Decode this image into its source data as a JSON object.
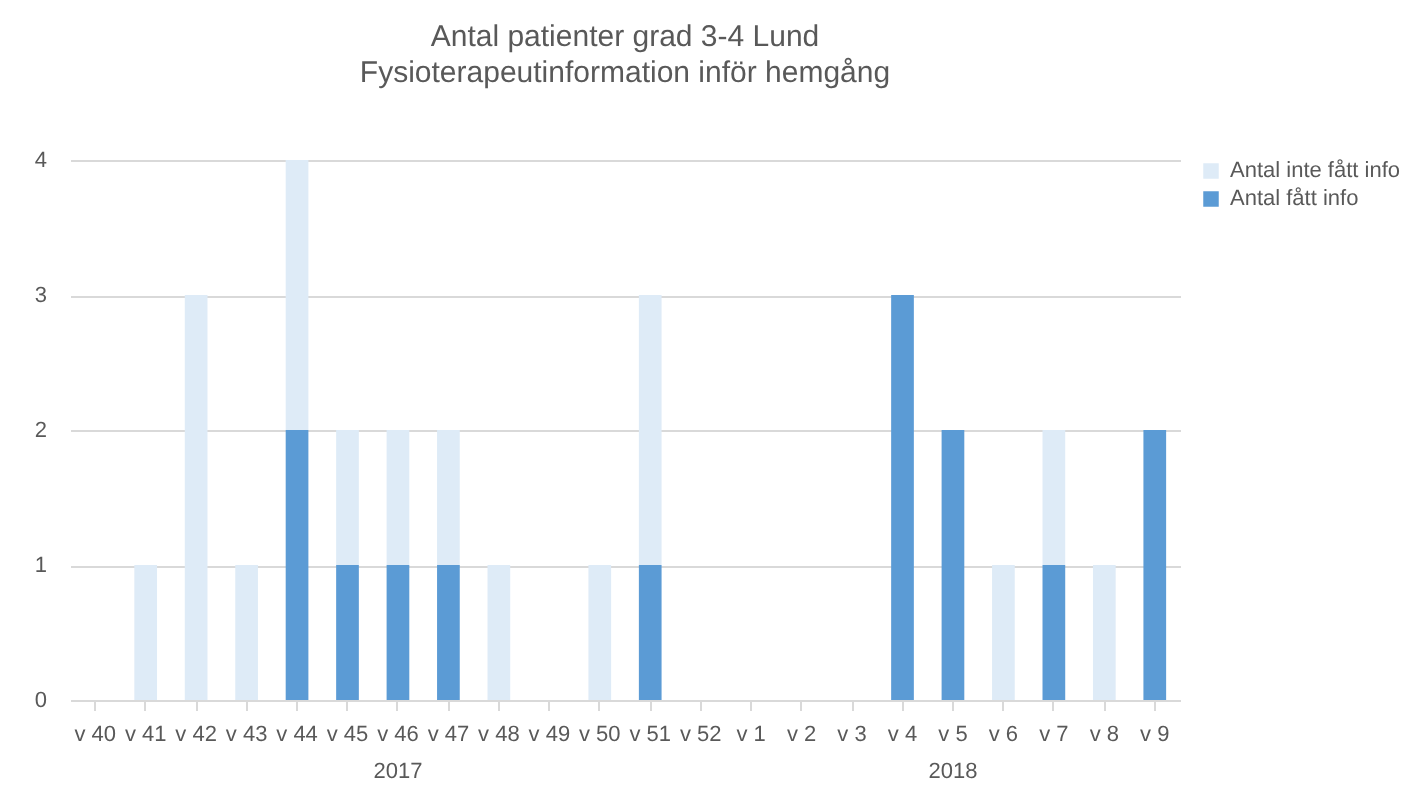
{
  "chart_data": {
    "type": "bar",
    "title": "Antal patienter grad 3-4 Lund",
    "subtitle": "Fysioterapeutinformation inför hemgång",
    "categories": [
      "v 40",
      "v 41",
      "v 42",
      "v 43",
      "v 44",
      "v 45",
      "v 46",
      "v 47",
      "v 48",
      "v 49",
      "v 50",
      "v 51",
      "v 52",
      "v 1",
      "v 2",
      "v 3",
      "v 4",
      "v 5",
      "v 6",
      "v 7",
      "v 8",
      "v 9"
    ],
    "series": [
      {
        "name": "Antal fått info",
        "color": "#5b9bd5",
        "values": [
          0,
          0,
          0,
          0,
          2,
          1,
          1,
          1,
          0,
          0,
          0,
          1,
          0,
          0,
          0,
          0,
          3,
          2,
          0,
          1,
          0,
          2
        ]
      },
      {
        "name": "Antal inte fått info",
        "color": "#deebf7",
        "values": [
          0,
          1,
          3,
          1,
          2,
          1,
          1,
          1,
          1,
          0,
          1,
          2,
          0,
          0,
          0,
          0,
          0,
          0,
          1,
          1,
          1,
          0
        ]
      }
    ],
    "stacked": true,
    "ylim": [
      0,
      4
    ],
    "yticks": [
      0,
      1,
      2,
      3,
      4
    ],
    "grid": "y",
    "legend": "right",
    "annotations": [
      "2017",
      "2018"
    ]
  }
}
